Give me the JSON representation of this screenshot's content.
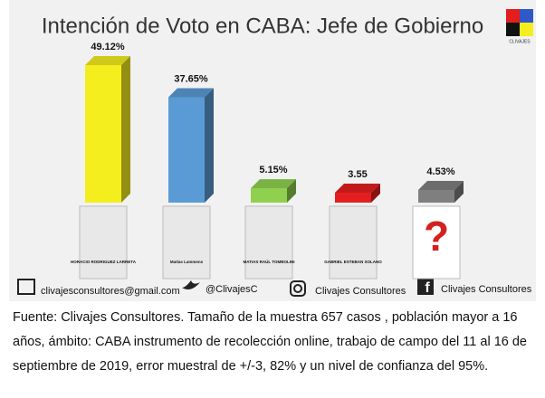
{
  "chart_data": {
    "type": "bar3d",
    "title": "Intención de Voto en CABA: Jefe de Gobierno",
    "logo_text": "CLIVAJES",
    "categories": [
      "HORACIO RODRIGUEZ LARRETA",
      "Matías Lammens",
      "MATIAS RAÚL TOMBOLINI",
      "GABRIEL ESTEBAN SOLANO",
      null
    ],
    "values": [
      49.12,
      37.65,
      5.15,
      3.55,
      4.53
    ],
    "value_labels": [
      "49.12%",
      "37.65%",
      "5.15%",
      "3.55",
      "4.53%"
    ],
    "colors": [
      "#f4ee1f",
      "#5b9bd5",
      "#8fd14f",
      "#e41e1e",
      "#7f7f7f"
    ],
    "footer": [
      "clivajesconsultores@gmail.com",
      "@ClivajesC",
      "Clivajes Consultores",
      "Clivajes Consultores"
    ]
  },
  "caption": "Fuente: Clivajes Consultores. Tamaño de la muestra 657 casos , población mayor a 16 años, ámbito: CABA instrumento de recolección online, trabajo de campo del 11 al 16 de septiembre de 2019, error muestral de +/-3, 82% y un nivel de confianza del 95%."
}
